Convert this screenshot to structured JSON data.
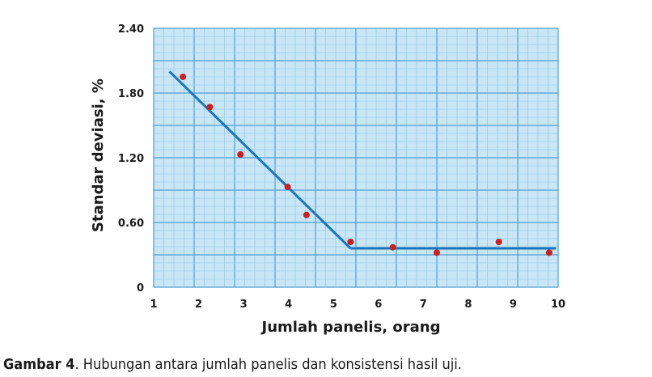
{
  "chart_data": {
    "type": "scatter",
    "title": "",
    "xlabel": "Jumlah panelis, orang",
    "ylabel": "Standar deviasi, %",
    "xlim": [
      1,
      10
    ],
    "ylim": [
      0,
      2.4
    ],
    "x_ticks": [
      "1",
      "2",
      "3",
      "4",
      "5",
      "6",
      "7",
      "8",
      "9",
      "10"
    ],
    "y_ticks": [
      "0",
      "0.60",
      "1.20",
      "1.80",
      "2.40"
    ],
    "y_tick_values": [
      0,
      0.6,
      1.2,
      1.8,
      2.4
    ],
    "grid": true,
    "colors": {
      "plot_bg": "#c8e6f6",
      "grid_minor": "#8cc3e3",
      "grid_major": "#4f9fce",
      "trend_line": "#1b75bb",
      "point": "#cc1f1f"
    },
    "points": [
      {
        "x": 1.65,
        "y": 1.95
      },
      {
        "x": 2.25,
        "y": 1.67
      },
      {
        "x": 2.93,
        "y": 1.23
      },
      {
        "x": 3.98,
        "y": 0.93
      },
      {
        "x": 4.4,
        "y": 0.67
      },
      {
        "x": 5.38,
        "y": 0.42
      },
      {
        "x": 6.32,
        "y": 0.37
      },
      {
        "x": 7.3,
        "y": 0.32
      },
      {
        "x": 8.68,
        "y": 0.42
      },
      {
        "x": 9.8,
        "y": 0.32
      }
    ],
    "trend_line": [
      {
        "x": 1.35,
        "y": 2.0
      },
      {
        "x": 5.38,
        "y": 0.36
      },
      {
        "x": 9.95,
        "y": 0.36
      }
    ]
  },
  "caption": {
    "label": "Gambar 4",
    "text": ". Hubungan antara jumlah panelis dan konsistensi hasil uji."
  }
}
